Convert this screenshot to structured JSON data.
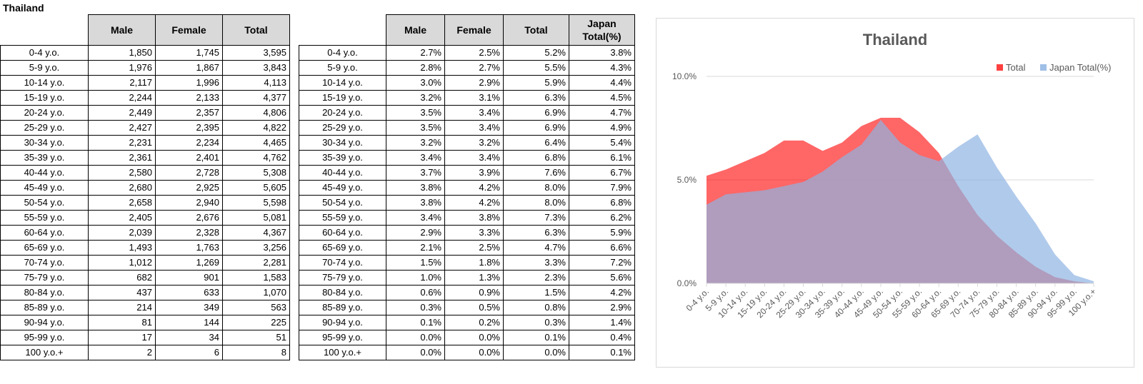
{
  "sheet_title": "Thailand",
  "abs_table": {
    "headers": [
      "Male",
      "Female",
      "Total"
    ],
    "rows": [
      [
        "0-4 y.o.",
        "1,850",
        "1,745",
        "3,595"
      ],
      [
        "5-9 y.o.",
        "1,976",
        "1,867",
        "3,843"
      ],
      [
        "10-14 y.o.",
        "2,117",
        "1,996",
        "4,113"
      ],
      [
        "15-19 y.o.",
        "2,244",
        "2,133",
        "4,377"
      ],
      [
        "20-24 y.o.",
        "2,449",
        "2,357",
        "4,806"
      ],
      [
        "25-29 y.o.",
        "2,427",
        "2,395",
        "4,822"
      ],
      [
        "30-34 y.o.",
        "2,231",
        "2,234",
        "4,465"
      ],
      [
        "35-39 y.o.",
        "2,361",
        "2,401",
        "4,762"
      ],
      [
        "40-44 y.o.",
        "2,580",
        "2,728",
        "5,308"
      ],
      [
        "45-49 y.o.",
        "2,680",
        "2,925",
        "5,605"
      ],
      [
        "50-54 y.o.",
        "2,658",
        "2,940",
        "5,598"
      ],
      [
        "55-59 y.o.",
        "2,405",
        "2,676",
        "5,081"
      ],
      [
        "60-64 y.o.",
        "2,039",
        "2,328",
        "4,367"
      ],
      [
        "65-69 y.o.",
        "1,493",
        "1,763",
        "3,256"
      ],
      [
        "70-74 y.o.",
        "1,012",
        "1,269",
        "2,281"
      ],
      [
        "75-79 y.o.",
        "682",
        "901",
        "1,583"
      ],
      [
        "80-84 y.o.",
        "437",
        "633",
        "1,070"
      ],
      [
        "85-89 y.o.",
        "214",
        "349",
        "563"
      ],
      [
        "90-94 y.o.",
        "81",
        "144",
        "225"
      ],
      [
        "95-99 y.o.",
        "17",
        "34",
        "51"
      ],
      [
        "100 y.o.+",
        "2",
        "6",
        "8"
      ]
    ]
  },
  "pct_table": {
    "headers": [
      "Male",
      "Female",
      "Total",
      "Japan Total(%)"
    ],
    "rows": [
      [
        "0-4 y.o.",
        "2.7%",
        "2.5%",
        "5.2%",
        "3.8%"
      ],
      [
        "5-9 y.o.",
        "2.8%",
        "2.7%",
        "5.5%",
        "4.3%"
      ],
      [
        "10-14 y.o.",
        "3.0%",
        "2.9%",
        "5.9%",
        "4.4%"
      ],
      [
        "15-19 y.o.",
        "3.2%",
        "3.1%",
        "6.3%",
        "4.5%"
      ],
      [
        "20-24 y.o.",
        "3.5%",
        "3.4%",
        "6.9%",
        "4.7%"
      ],
      [
        "25-29 y.o.",
        "3.5%",
        "3.4%",
        "6.9%",
        "4.9%"
      ],
      [
        "30-34 y.o.",
        "3.2%",
        "3.2%",
        "6.4%",
        "5.4%"
      ],
      [
        "35-39 y.o.",
        "3.4%",
        "3.4%",
        "6.8%",
        "6.1%"
      ],
      [
        "40-44 y.o.",
        "3.7%",
        "3.9%",
        "7.6%",
        "6.7%"
      ],
      [
        "45-49 y.o.",
        "3.8%",
        "4.2%",
        "8.0%",
        "7.9%"
      ],
      [
        "50-54 y.o.",
        "3.8%",
        "4.2%",
        "8.0%",
        "6.8%"
      ],
      [
        "55-59 y.o.",
        "3.4%",
        "3.8%",
        "7.3%",
        "6.2%"
      ],
      [
        "60-64 y.o.",
        "2.9%",
        "3.3%",
        "6.3%",
        "5.9%"
      ],
      [
        "65-69 y.o.",
        "2.1%",
        "2.5%",
        "4.7%",
        "6.6%"
      ],
      [
        "70-74 y.o.",
        "1.5%",
        "1.8%",
        "3.3%",
        "7.2%"
      ],
      [
        "75-79 y.o.",
        "1.0%",
        "1.3%",
        "2.3%",
        "5.6%"
      ],
      [
        "80-84 y.o.",
        "0.6%",
        "0.9%",
        "1.5%",
        "4.2%"
      ],
      [
        "85-89 y.o.",
        "0.3%",
        "0.5%",
        "0.8%",
        "2.9%"
      ],
      [
        "90-94 y.o.",
        "0.1%",
        "0.2%",
        "0.3%",
        "1.4%"
      ],
      [
        "95-99 y.o.",
        "0.0%",
        "0.0%",
        "0.1%",
        "0.4%"
      ],
      [
        "100 y.o.+",
        "0.0%",
        "0.0%",
        "0.0%",
        "0.1%"
      ]
    ]
  },
  "chart_data": {
    "type": "area",
    "title": "Thailand",
    "categories": [
      "0-4 y.o.",
      "5-9 y.o.",
      "10-14 y.o.",
      "15-19 y.o.",
      "20-24 y.o.",
      "25-29 y.o.",
      "30-34 y.o.",
      "35-39 y.o.",
      "40-44 y.o.",
      "45-49 y.o.",
      "50-54 y.o.",
      "55-59 y.o.",
      "60-64 y.o.",
      "65-69 y.o.",
      "70-74 y.o.",
      "75-79 y.o.",
      "80-84 y.o.",
      "85-89 y.o.",
      "90-94 y.o.",
      "95-99 y.o.",
      "100 y.o.+"
    ],
    "series": [
      {
        "name": "Total",
        "color": "#ff0000",
        "values": [
          5.2,
          5.5,
          5.9,
          6.3,
          6.9,
          6.9,
          6.4,
          6.8,
          7.6,
          8.0,
          8.0,
          7.3,
          6.3,
          4.7,
          3.3,
          2.3,
          1.5,
          0.8,
          0.3,
          0.1,
          0.0
        ]
      },
      {
        "name": "Japan Total(%)",
        "color": "#8eb4e3",
        "values": [
          3.8,
          4.3,
          4.4,
          4.5,
          4.7,
          4.9,
          5.4,
          6.1,
          6.7,
          7.9,
          6.8,
          6.2,
          5.9,
          6.6,
          7.2,
          5.6,
          4.2,
          2.9,
          1.4,
          0.4,
          0.1
        ]
      }
    ],
    "y_ticks": [
      "0.0%",
      "5.0%",
      "10.0%"
    ],
    "ylim": [
      0,
      10
    ],
    "legend_position": "top-right",
    "grid": true
  }
}
